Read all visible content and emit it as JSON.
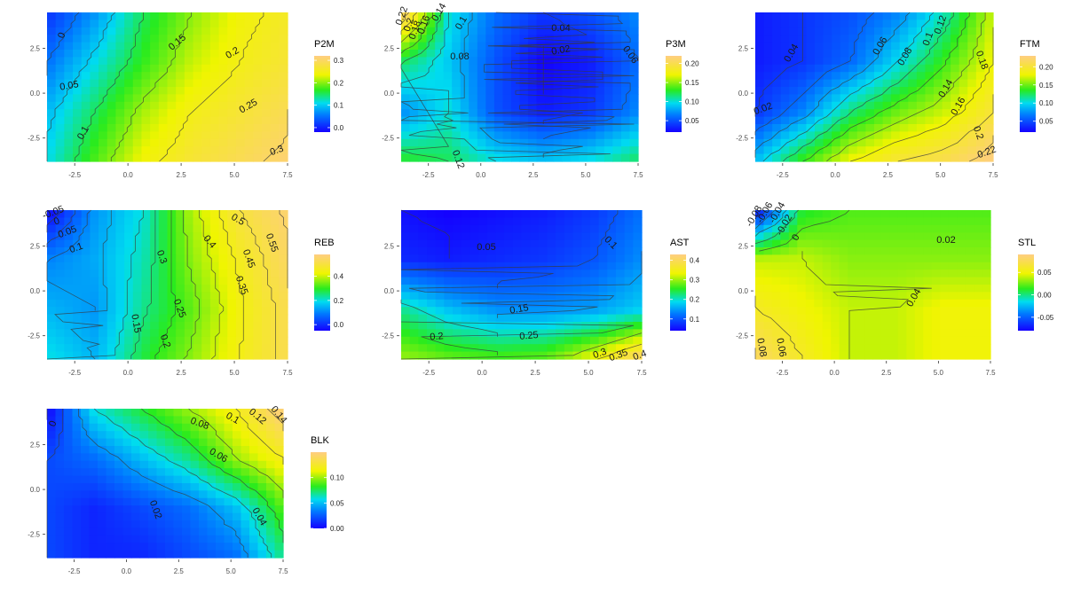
{
  "chart_data": [
    {
      "type": "heatmap",
      "legend_title": "P2M",
      "legend_ticks": [
        0.0,
        0.1,
        0.2,
        0.3
      ],
      "legend_tick_labels": [
        "0.0",
        "0.1",
        "0.2",
        "0.3"
      ],
      "value_range": [
        -0.02,
        0.32
      ],
      "contour_labels": [
        "0",
        "0.05",
        "0.1",
        "0.15",
        "0.2",
        "0.25",
        "0.3"
      ],
      "xticks": [
        "-2.5",
        "0.0",
        "2.5",
        "5.0",
        "7.5"
      ],
      "yticks": [
        "2.5",
        "0.0",
        "-2.5"
      ],
      "xlim": [
        -3.8,
        7.5
      ],
      "ylim": [
        -3.8,
        4.5
      ],
      "field": [
        [
          0.01,
          0.07,
          0.15,
          0.2,
          0.24,
          0.26
        ],
        [
          0.05,
          0.11,
          0.17,
          0.22,
          0.25,
          0.27
        ],
        [
          0.09,
          0.15,
          0.21,
          0.25,
          0.27,
          0.29
        ],
        [
          0.11,
          0.18,
          0.24,
          0.27,
          0.29,
          0.31
        ]
      ]
    },
    {
      "type": "heatmap",
      "legend_title": "P3M",
      "legend_ticks": [
        0.05,
        0.1,
        0.15,
        0.2
      ],
      "legend_tick_labels": [
        "0.05",
        "0.10",
        "0.15",
        "0.20"
      ],
      "value_range": [
        0.02,
        0.22
      ],
      "contour_labels": [
        "0.22",
        "0.2",
        "0.18",
        "0.16",
        "0.14",
        "0.1",
        "0.08",
        "0.06",
        "0.04",
        "0.02",
        "0.12"
      ],
      "xticks": [
        "-2.5",
        "0.0",
        "2.5",
        "5.0",
        "7.5"
      ],
      "yticks": [
        "2.5",
        "0.0",
        "-2.5"
      ],
      "xlim": [
        -3.8,
        7.5
      ],
      "ylim": [
        -3.8,
        4.5
      ],
      "field": [
        [
          0.22,
          0.1,
          0.06,
          0.04,
          0.05,
          0.07
        ],
        [
          0.12,
          0.09,
          0.05,
          0.02,
          0.03,
          0.06
        ],
        [
          0.07,
          0.1,
          0.05,
          0.03,
          0.04,
          0.07
        ],
        [
          0.13,
          0.12,
          0.1,
          0.09,
          0.1,
          0.12
        ]
      ]
    },
    {
      "type": "heatmap",
      "legend_title": "FTM",
      "legend_ticks": [
        0.05,
        0.1,
        0.15,
        0.2
      ],
      "legend_tick_labels": [
        "0.05",
        "0.10",
        "0.15",
        "0.20"
      ],
      "value_range": [
        0.02,
        0.23
      ],
      "contour_labels": [
        "0.04",
        "0.06",
        "0.08",
        "0.1",
        "0.12",
        "0.14",
        "0.16",
        "0.18",
        "0.2",
        "0.22",
        "0.02"
      ],
      "xticks": [
        "-2.5",
        "0.0",
        "2.5",
        "5.0",
        "7.5"
      ],
      "yticks": [
        "2.5",
        "0.0",
        "-2.5"
      ],
      "xlim": [
        -3.8,
        7.5
      ],
      "ylim": [
        -3.8,
        4.5
      ],
      "field": [
        [
          0.03,
          0.04,
          0.05,
          0.07,
          0.11,
          0.17
        ],
        [
          0.03,
          0.04,
          0.06,
          0.1,
          0.14,
          0.18
        ],
        [
          0.04,
          0.07,
          0.12,
          0.15,
          0.17,
          0.2
        ],
        [
          0.09,
          0.14,
          0.18,
          0.2,
          0.21,
          0.23
        ]
      ]
    },
    {
      "type": "heatmap",
      "legend_title": "REB",
      "legend_ticks": [
        0.0,
        0.2,
        0.4
      ],
      "legend_tick_labels": [
        "0.0",
        "0.2",
        "0.4"
      ],
      "value_range": [
        -0.05,
        0.58
      ],
      "contour_labels": [
        "-0.05",
        "0",
        "0.05",
        "0.1",
        "0.3",
        "0.4",
        "0.5",
        "0.55",
        "0.45",
        "0.35",
        "0.25",
        "0.15",
        "0.2"
      ],
      "xticks": [
        "-2.5",
        "0.0",
        "2.5",
        "5.0",
        "7.5"
      ],
      "yticks": [
        "2.5",
        "0.0",
        "-2.5"
      ],
      "xlim": [
        -3.8,
        7.5
      ],
      "ylim": [
        -3.8,
        4.5
      ],
      "field": [
        [
          -0.05,
          0.12,
          0.2,
          0.38,
          0.5,
          0.56
        ],
        [
          0.1,
          0.14,
          0.22,
          0.36,
          0.46,
          0.54
        ],
        [
          0.15,
          0.12,
          0.24,
          0.33,
          0.44,
          0.52
        ],
        [
          0.2,
          0.15,
          0.28,
          0.36,
          0.45,
          0.52
        ]
      ]
    },
    {
      "type": "heatmap",
      "legend_title": "AST",
      "legend_ticks": [
        0.1,
        0.2,
        0.3,
        0.4
      ],
      "legend_tick_labels": [
        "0.1",
        "0.2",
        "0.3",
        "0.4"
      ],
      "value_range": [
        0.04,
        0.43
      ],
      "contour_labels": [
        "0.05",
        "0.1",
        "0.15",
        "0.2",
        "0.25",
        "0.3",
        "0.35",
        "0.4"
      ],
      "xticks": [
        "-2.5",
        "0.0",
        "2.5",
        "5.0",
        "7.5"
      ],
      "yticks": [
        "2.5",
        "0.0",
        "-2.5"
      ],
      "xlim": [
        -3.8,
        7.5
      ],
      "ylim": [
        -3.8,
        4.5
      ],
      "field": [
        [
          0.05,
          0.04,
          0.05,
          0.06,
          0.08,
          0.12
        ],
        [
          0.07,
          0.06,
          0.07,
          0.08,
          0.1,
          0.14
        ],
        [
          0.22,
          0.17,
          0.14,
          0.14,
          0.15,
          0.18
        ],
        [
          0.3,
          0.28,
          0.27,
          0.28,
          0.34,
          0.42
        ]
      ]
    },
    {
      "type": "heatmap",
      "legend_title": "STL",
      "legend_ticks": [
        0.05,
        0.0,
        -0.05
      ],
      "legend_tick_labels": [
        "0.05",
        "0.00",
        "-0.05"
      ],
      "value_range": [
        -0.08,
        0.09
      ],
      "contour_labels": [
        "-0.08",
        "-0.06",
        "-0.04",
        "-0.02",
        "0",
        "0.02",
        "0.04",
        "0.06",
        "0.08"
      ],
      "xticks": [
        "-2.5",
        "0.0",
        "2.5",
        "5.0",
        "7.5"
      ],
      "yticks": [
        "2.5",
        "0.0",
        "-2.5"
      ],
      "xlim": [
        -3.8,
        7.5
      ],
      "ylim": [
        -3.8,
        4.5
      ],
      "field": [
        [
          -0.08,
          0.01,
          0.02,
          0.02,
          0.02,
          0.02
        ],
        [
          0.04,
          0.04,
          0.03,
          0.03,
          0.03,
          0.03
        ],
        [
          0.06,
          0.05,
          0.04,
          0.04,
          0.05,
          0.05
        ],
        [
          0.08,
          0.06,
          0.04,
          0.04,
          0.05,
          0.05
        ]
      ]
    },
    {
      "type": "heatmap",
      "legend_title": "BLK",
      "legend_ticks": [
        0.0,
        0.05,
        0.1
      ],
      "legend_tick_labels": [
        "0.00",
        "0.05",
        "0.10"
      ],
      "value_range": [
        0.0,
        0.15
      ],
      "contour_labels": [
        "0",
        "0.02",
        "0.04",
        "0.06",
        "0.08",
        "0.1",
        "0.12",
        "0.14"
      ],
      "xticks": [
        "-2.5",
        "0.0",
        "2.5",
        "5.0",
        "7.5"
      ],
      "yticks": [
        "2.5",
        "0.0",
        "-2.5"
      ],
      "xlim": [
        -3.8,
        7.5
      ],
      "ylim": [
        -3.8,
        4.5
      ],
      "field": [
        [
          0.0,
          0.06,
          0.08,
          0.1,
          0.12,
          0.15
        ],
        [
          0.02,
          0.03,
          0.05,
          0.07,
          0.1,
          0.12
        ],
        [
          0.02,
          0.01,
          0.02,
          0.03,
          0.05,
          0.09
        ],
        [
          0.02,
          0.01,
          0.01,
          0.02,
          0.03,
          0.07
        ]
      ]
    }
  ]
}
